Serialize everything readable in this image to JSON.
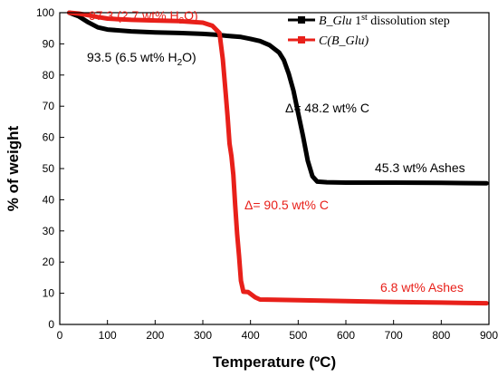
{
  "chart_data": {
    "type": "line",
    "xlabel": "Temperature (ºC)",
    "ylabel": "% of weight",
    "xlim": [
      0,
      900
    ],
    "ylim": [
      0,
      100
    ],
    "x_ticks": [
      0,
      100,
      200,
      300,
      400,
      500,
      600,
      700,
      800,
      900
    ],
    "y_ticks": [
      0,
      10,
      20,
      30,
      40,
      50,
      60,
      70,
      80,
      90,
      100
    ],
    "grid": false,
    "legend_position": "top-right",
    "series": [
      {
        "name": "B_Glu 1st dissolution step",
        "color": "#000000",
        "x": [
          20,
          40,
          60,
          80,
          100,
          150,
          200,
          250,
          300,
          330,
          350,
          380,
          400,
          420,
          440,
          460,
          470,
          480,
          490,
          500,
          510,
          520,
          530,
          540,
          560,
          600,
          700,
          800,
          895
        ],
        "y": [
          100,
          98.8,
          96.9,
          95.3,
          94.6,
          94.0,
          93.7,
          93.5,
          93.2,
          92.9,
          92.6,
          92.2,
          91.6,
          90.9,
          89.6,
          87.2,
          84.8,
          80.5,
          75.0,
          67.8,
          60.5,
          52.5,
          47.5,
          45.8,
          45.6,
          45.5,
          45.5,
          45.4,
          45.3
        ]
      },
      {
        "name": "C(B_Glu)",
        "color": "#e8201a",
        "x": [
          20,
          40,
          60,
          80,
          100,
          150,
          200,
          250,
          300,
          320,
          335,
          342,
          348,
          352,
          356,
          360,
          364,
          368,
          372,
          376,
          380,
          385,
          395,
          410,
          420,
          450,
          500,
          600,
          700,
          800,
          895
        ],
        "y": [
          100,
          99.7,
          99.2,
          98.6,
          98.1,
          97.7,
          97.5,
          97.3,
          96.8,
          95.8,
          93.5,
          85.0,
          74.0,
          66.5,
          58.0,
          54.0,
          48.0,
          38.0,
          29.0,
          22.0,
          14.0,
          10.5,
          10.4,
          8.7,
          8.0,
          7.9,
          7.8,
          7.5,
          7.2,
          7.0,
          6.8
        ]
      }
    ],
    "legend": [
      {
        "series": 0,
        "label_main": "B_Glu",
        "label_rest": " 1",
        "label_sup": "st",
        "label_tail": " dissolution step"
      },
      {
        "series": 1,
        "label_main": "C(B_Glu)",
        "label_rest": "",
        "label_sup": "",
        "label_tail": ""
      }
    ],
    "annotations": [
      {
        "id": "h2o-red",
        "text": "97.3 (2.7 wt%  H",
        "sub": "2",
        "tail": "O)",
        "color": "#e8201a"
      },
      {
        "id": "h2o-black",
        "text": "93.5 (6.5 wt% H",
        "sub": "2",
        "tail": "O)",
        "color": "#000000"
      },
      {
        "id": "delta-black",
        "text": "Δ= 48.2 wt% C",
        "color": "#000000"
      },
      {
        "id": "ash-black",
        "text": "45.3 wt% Ashes",
        "color": "#000000"
      },
      {
        "id": "delta-red",
        "text": "Δ= 90.5 wt% C",
        "color": "#e8201a"
      },
      {
        "id": "ash-red",
        "text": "6.8 wt% Ashes",
        "color": "#e8201a"
      }
    ]
  }
}
